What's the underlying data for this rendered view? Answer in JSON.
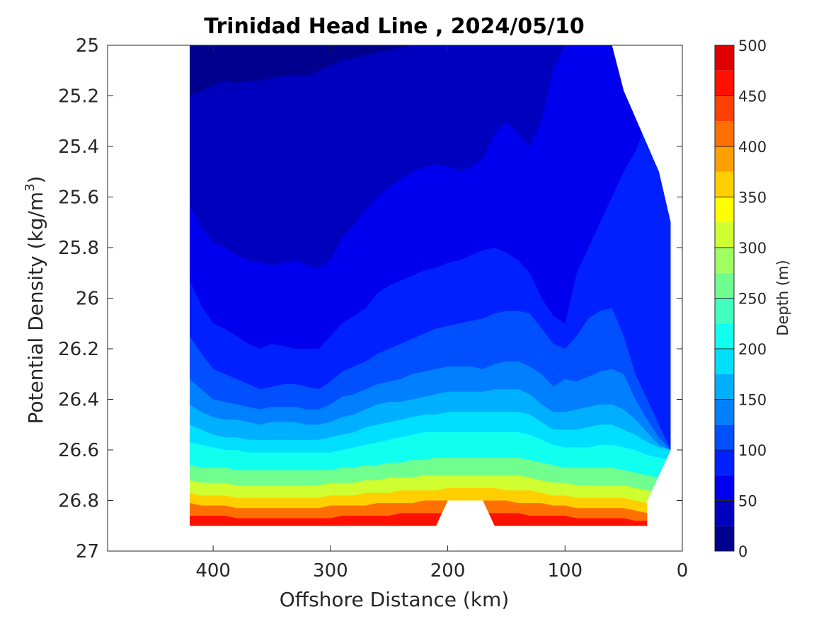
{
  "chart_data": {
    "type": "contour",
    "title": "Trinidad Head Line , 2024/05/10",
    "xlabel": "Offshore Distance (km)",
    "ylabel_main": "Potential Density (kg/m",
    "ylabel_sup": "3",
    "ylabel_close": ")",
    "xlim": [
      490,
      0
    ],
    "x_ticks": [
      400,
      300,
      200,
      100,
      0
    ],
    "x_tick_labels": [
      "400",
      "300",
      "200",
      "100",
      "0"
    ],
    "ylim": [
      25,
      27
    ],
    "y_ticks": [
      25,
      25.2,
      25.4,
      25.6,
      25.8,
      26,
      26.2,
      26.4,
      26.6,
      26.8,
      27
    ],
    "y_tick_labels": [
      "25",
      "25.2",
      "25.4",
      "25.6",
      "25.8",
      "26",
      "26.2",
      "26.4",
      "26.6",
      "26.8",
      "27"
    ],
    "y_reversed": true,
    "colorbar": {
      "label": "Depth (m)",
      "range": [
        0,
        500
      ],
      "ticks": [
        0,
        50,
        100,
        150,
        200,
        250,
        300,
        350,
        400,
        450,
        500
      ],
      "tick_labels": [
        "0",
        "50",
        "100",
        "150",
        "200",
        "250",
        "300",
        "350",
        "400",
        "450",
        "500"
      ],
      "levels": [
        0,
        25,
        50,
        75,
        100,
        125,
        150,
        175,
        200,
        225,
        250,
        275,
        300,
        325,
        350,
        375,
        400,
        425,
        450,
        475,
        500
      ],
      "colors": [
        "#00008f",
        "#0000bf",
        "#0000ef",
        "#0020ff",
        "#0050ff",
        "#0080ff",
        "#00afff",
        "#00dfff",
        "#10ffef",
        "#40ffbf",
        "#70ff8f",
        "#9fff60",
        "#cfff30",
        "#ffff00",
        "#ffcf00",
        "#ff9f00",
        "#ff7000",
        "#ff4000",
        "#ff1000",
        "#df0000"
      ]
    },
    "grid": false,
    "data_extent": {
      "x_range_km": [
        420,
        10
      ],
      "y_range": [
        25,
        26.9
      ],
      "gap_x_km": [
        210,
        160
      ],
      "gap_y_top": 26.8
    },
    "station_x_km": [
      420,
      410,
      400,
      390,
      380,
      370,
      360,
      350,
      340,
      330,
      320,
      310,
      300,
      290,
      280,
      270,
      260,
      250,
      240,
      230,
      220,
      210,
      200,
      190,
      180,
      170,
      160,
      150,
      140,
      130,
      120,
      110,
      100,
      90,
      80,
      70,
      60,
      50,
      40,
      30,
      20,
      10
    ],
    "isopycnal_depth_bands": [
      {
        "depth": 25,
        "y": [
          25.2,
          25.18,
          25.16,
          25.14,
          25.15,
          25.14,
          25.14,
          25.13,
          25.12,
          25.12,
          25.12,
          25.1,
          25.08,
          25.06,
          25.05,
          25.04,
          25.03,
          25.02,
          25.01,
          25.0,
          25.0,
          25.0,
          25.0,
          25.0,
          25.0,
          25.0,
          25.0,
          25.0,
          25.0,
          25.0,
          25.0,
          25.0,
          25.0,
          25.0,
          25.0,
          25.0,
          25.0,
          25.0,
          25.0,
          25.0,
          25.0,
          25.0
        ]
      },
      {
        "depth": 50,
        "y": [
          25.63,
          25.72,
          25.78,
          25.8,
          25.83,
          25.85,
          25.86,
          25.87,
          25.86,
          25.85,
          25.87,
          25.88,
          25.85,
          25.76,
          25.71,
          25.65,
          25.6,
          25.56,
          25.53,
          25.5,
          25.48,
          25.47,
          25.48,
          25.5,
          25.48,
          25.45,
          25.35,
          25.3,
          25.35,
          25.4,
          25.3,
          25.1,
          25.0,
          25.0,
          25.0,
          25.0,
          25.0,
          25.0,
          25.0,
          25.0,
          25.0,
          25.0
        ]
      },
      {
        "depth": 75,
        "y": [
          25.93,
          26.03,
          26.1,
          26.12,
          26.15,
          26.18,
          26.2,
          26.18,
          26.19,
          26.2,
          26.2,
          26.2,
          26.15,
          26.1,
          26.07,
          26.04,
          25.98,
          25.95,
          25.93,
          25.91,
          25.89,
          25.88,
          25.86,
          25.85,
          25.83,
          25.81,
          25.8,
          25.82,
          25.85,
          25.9,
          26.0,
          26.07,
          26.1,
          25.9,
          25.8,
          25.7,
          25.6,
          25.5,
          25.42,
          25.3,
          25.2,
          25.15
        ]
      },
      {
        "depth": 100,
        "y": [
          26.15,
          26.22,
          26.28,
          26.3,
          26.32,
          26.34,
          26.36,
          26.35,
          26.34,
          26.34,
          26.35,
          26.36,
          26.33,
          26.29,
          26.27,
          26.25,
          26.22,
          26.2,
          26.18,
          26.16,
          26.14,
          26.12,
          26.11,
          26.1,
          26.09,
          26.08,
          26.06,
          26.05,
          26.05,
          26.06,
          26.12,
          26.18,
          26.2,
          26.15,
          26.08,
          26.05,
          26.04,
          26.15,
          26.3,
          26.4,
          26.5,
          26.6
        ]
      },
      {
        "depth": 125,
        "y": [
          26.32,
          26.36,
          26.4,
          26.41,
          26.42,
          26.43,
          26.44,
          26.43,
          26.43,
          26.43,
          26.44,
          26.44,
          26.42,
          26.39,
          26.38,
          26.36,
          26.34,
          26.33,
          26.32,
          26.3,
          26.29,
          26.28,
          26.27,
          26.27,
          26.27,
          26.28,
          26.26,
          26.25,
          26.25,
          26.27,
          26.3,
          26.35,
          26.32,
          26.33,
          26.31,
          26.29,
          26.28,
          26.3,
          26.4,
          26.48,
          26.55,
          26.6
        ]
      },
      {
        "depth": 150,
        "y": [
          26.42,
          26.45,
          26.47,
          26.48,
          26.48,
          26.49,
          26.5,
          26.49,
          26.49,
          26.49,
          26.5,
          26.5,
          26.49,
          26.47,
          26.46,
          26.44,
          26.42,
          26.41,
          26.41,
          26.4,
          26.39,
          26.38,
          26.37,
          26.37,
          26.37,
          26.37,
          26.36,
          26.36,
          26.36,
          26.38,
          26.42,
          26.45,
          26.45,
          26.44,
          26.43,
          26.42,
          26.42,
          26.44,
          26.48,
          26.53,
          26.58,
          26.6
        ]
      },
      {
        "depth": 175,
        "y": [
          26.5,
          26.52,
          26.54,
          26.55,
          26.55,
          26.56,
          26.56,
          26.56,
          26.56,
          26.56,
          26.56,
          26.56,
          26.55,
          26.54,
          26.53,
          26.51,
          26.5,
          26.49,
          26.48,
          26.47,
          26.46,
          26.46,
          26.45,
          26.45,
          26.45,
          26.45,
          26.45,
          26.45,
          26.45,
          26.46,
          26.49,
          26.52,
          26.52,
          26.52,
          26.51,
          26.5,
          26.5,
          26.52,
          26.54,
          26.57,
          26.59,
          26.6
        ]
      },
      {
        "depth": 200,
        "y": [
          26.57,
          26.58,
          26.59,
          26.6,
          26.6,
          26.61,
          26.61,
          26.61,
          26.61,
          26.61,
          26.61,
          26.61,
          26.61,
          26.6,
          26.59,
          26.58,
          26.57,
          26.56,
          26.55,
          26.54,
          26.53,
          26.53,
          26.53,
          26.53,
          26.53,
          26.53,
          26.53,
          26.53,
          26.53,
          26.54,
          26.56,
          26.58,
          26.59,
          26.59,
          26.59,
          26.58,
          26.58,
          26.59,
          26.6,
          26.62,
          26.63,
          26.64
        ]
      },
      {
        "depth": 250,
        "y": [
          26.66,
          26.67,
          26.67,
          26.67,
          26.68,
          26.68,
          26.68,
          26.68,
          26.68,
          26.68,
          26.68,
          26.68,
          26.68,
          26.67,
          26.67,
          26.66,
          26.66,
          26.65,
          26.65,
          26.64,
          26.64,
          26.63,
          26.63,
          26.63,
          26.63,
          26.63,
          26.63,
          26.63,
          26.63,
          26.64,
          26.65,
          26.66,
          26.67,
          26.67,
          26.67,
          26.67,
          26.67,
          26.68,
          26.69,
          26.7,
          26.71,
          26.72
        ]
      },
      {
        "depth": 300,
        "y": [
          26.72,
          26.73,
          26.73,
          26.73,
          26.74,
          26.74,
          26.74,
          26.74,
          26.74,
          26.74,
          26.74,
          26.74,
          26.73,
          26.73,
          26.73,
          26.72,
          26.72,
          26.71,
          26.71,
          26.71,
          26.7,
          26.7,
          26.7,
          26.7,
          26.7,
          26.7,
          26.7,
          26.7,
          26.7,
          26.71,
          26.72,
          26.73,
          26.73,
          26.74,
          26.74,
          26.74,
          26.74,
          26.74,
          26.75,
          26.76,
          26.77,
          26.78
        ]
      },
      {
        "depth": 350,
        "y": [
          26.77,
          26.78,
          26.78,
          26.78,
          26.79,
          26.79,
          26.79,
          26.79,
          26.79,
          26.79,
          26.79,
          26.79,
          26.78,
          26.78,
          26.78,
          26.77,
          26.77,
          26.77,
          26.76,
          26.76,
          26.76,
          26.76,
          26.75,
          26.75,
          26.75,
          26.75,
          26.75,
          26.76,
          26.76,
          26.76,
          26.77,
          26.78,
          26.78,
          26.79,
          26.79,
          26.79,
          26.79,
          26.79,
          26.8,
          26.81,
          26.82,
          26.83
        ]
      },
      {
        "depth": 400,
        "y": [
          26.81,
          26.82,
          26.82,
          26.82,
          26.83,
          26.83,
          26.83,
          26.83,
          26.83,
          26.83,
          26.83,
          26.83,
          26.82,
          26.82,
          26.82,
          26.82,
          26.81,
          26.81,
          26.81,
          26.81,
          26.8,
          26.8,
          26.8,
          26.8,
          26.8,
          26.8,
          26.8,
          26.8,
          26.81,
          26.81,
          26.81,
          26.82,
          26.82,
          26.83,
          26.83,
          26.83,
          26.83,
          26.83,
          26.84,
          26.85,
          26.86,
          26.86
        ]
      },
      {
        "depth": 450,
        "y": [
          26.86,
          26.86,
          26.86,
          26.86,
          26.87,
          26.87,
          26.87,
          26.87,
          26.87,
          26.87,
          26.87,
          26.87,
          26.87,
          26.86,
          26.86,
          26.86,
          26.86,
          26.86,
          26.85,
          26.85,
          26.85,
          26.85,
          26.85,
          26.85,
          26.85,
          26.85,
          26.85,
          26.85,
          26.85,
          26.86,
          26.86,
          26.86,
          26.86,
          26.87,
          26.87,
          26.87,
          26.87,
          26.87,
          26.88,
          26.88,
          26.89,
          26.89
        ]
      }
    ]
  }
}
